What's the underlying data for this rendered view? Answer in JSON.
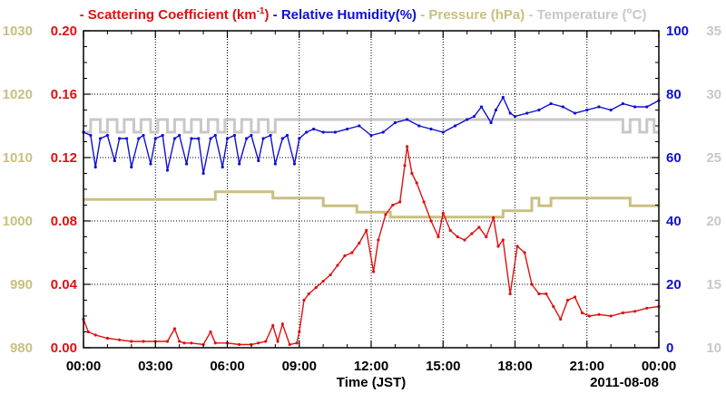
{
  "chart_data": {
    "type": "line",
    "title_parts": [
      {
        "text": "- Scattering Coefficient (km",
        "sup": "-1",
        "after": ")",
        "color": "#e01010"
      },
      {
        "text": " - Relative Humidity(%)",
        "color": "#1010d0"
      },
      {
        "text": " - Pressure (hPa)",
        "color": "#c8c080"
      },
      {
        "text": " - Temperature (",
        "sup2": "o",
        "after": "C)",
        "color": "#c8c8c8"
      }
    ],
    "xlabel": "Time (JST)",
    "date_label": "2011-08-08",
    "x_ticks": [
      "00:00",
      "03:00",
      "06:00",
      "09:00",
      "12:00",
      "15:00",
      "18:00",
      "21:00",
      "00:00"
    ],
    "xlim_hours": [
      0,
      24
    ],
    "axes": {
      "pressure": {
        "side": "left-outer",
        "ylim": [
          980,
          1030
        ],
        "ticks": [
          "980",
          "990",
          "1000",
          "1010",
          "1020",
          "1030"
        ],
        "color": "#c8c080"
      },
      "scattering": {
        "side": "left-inner",
        "ylim": [
          0,
          0.2
        ],
        "ticks": [
          "0.00",
          "0.04",
          "0.08",
          "0.12",
          "0.16",
          "0.20"
        ],
        "color": "#e01010"
      },
      "humidity": {
        "side": "right-inner",
        "ylim": [
          0,
          100
        ],
        "ticks": [
          "0",
          "20",
          "40",
          "60",
          "80",
          "100"
        ],
        "color": "#1010d0"
      },
      "temperature": {
        "side": "right-outer",
        "ylim": [
          10,
          35
        ],
        "ticks": [
          "10",
          "15",
          "20",
          "25",
          "30",
          "35"
        ],
        "color": "#c8c8c8"
      }
    },
    "grid": true,
    "series": [
      {
        "key": "scattering",
        "axis": "scattering",
        "color": "#e01010",
        "marker": true,
        "x": [
          0,
          0.2,
          0.5,
          1,
          1.5,
          2,
          2.5,
          3,
          3.5,
          3.8,
          4.0,
          4.2,
          4.5,
          5,
          5.3,
          5.5,
          6,
          6.5,
          7,
          7.3,
          7.6,
          7.9,
          8.1,
          8.3,
          8.6,
          8.9,
          9.0,
          9.2,
          9.4,
          9.7,
          10,
          10.3,
          10.6,
          10.9,
          11.2,
          11.5,
          11.8,
          12.1,
          12.3,
          12.6,
          12.9,
          13.2,
          13.4,
          13.5,
          13.7,
          13.9,
          14.2,
          14.5,
          14.8,
          15.0,
          15.3,
          15.6,
          15.9,
          16.2,
          16.5,
          16.8,
          17.1,
          17.3,
          17.5,
          17.8,
          18.1,
          18.4,
          18.7,
          19.0,
          19.3,
          19.6,
          19.9,
          20.2,
          20.5,
          20.8,
          21.1,
          21.5,
          22.0,
          22.5,
          23.0,
          23.5,
          24.0
        ],
        "y": [
          0.018,
          0.01,
          0.008,
          0.006,
          0.005,
          0.004,
          0.004,
          0.004,
          0.004,
          0.012,
          0.004,
          0.003,
          0.003,
          0.002,
          0.01,
          0.003,
          0.003,
          0.002,
          0.002,
          0.003,
          0.004,
          0.014,
          0.004,
          0.015,
          0.002,
          0.003,
          0.01,
          0.03,
          0.034,
          0.038,
          0.042,
          0.046,
          0.052,
          0.058,
          0.06,
          0.066,
          0.074,
          0.048,
          0.068,
          0.084,
          0.09,
          0.092,
          0.115,
          0.127,
          0.11,
          0.104,
          0.092,
          0.08,
          0.07,
          0.085,
          0.074,
          0.07,
          0.068,
          0.072,
          0.076,
          0.07,
          0.082,
          0.064,
          0.068,
          0.034,
          0.064,
          0.06,
          0.04,
          0.034,
          0.034,
          0.026,
          0.018,
          0.03,
          0.032,
          0.022,
          0.02,
          0.021,
          0.02,
          0.022,
          0.023,
          0.025,
          0.026
        ]
      },
      {
        "key": "humidity",
        "axis": "humidity",
        "color": "#1010d0",
        "marker": true,
        "x": [
          0,
          0.3,
          0.5,
          0.7,
          1,
          1.3,
          1.5,
          1.8,
          2,
          2.3,
          2.5,
          2.8,
          3,
          3.3,
          3.5,
          3.8,
          4.0,
          4.3,
          4.5,
          4.8,
          5.0,
          5.3,
          5.5,
          5.8,
          6.0,
          6.3,
          6.5,
          6.8,
          7.0,
          7.3,
          7.5,
          7.8,
          8.0,
          8.3,
          8.5,
          8.8,
          9.0,
          9.3,
          9.6,
          10,
          10.5,
          11,
          11.5,
          12,
          12.5,
          13,
          13.5,
          14,
          14.5,
          15,
          15.5,
          16,
          16.3,
          16.6,
          17.0,
          17.2,
          17.5,
          17.8,
          18,
          18.5,
          19,
          19.5,
          20,
          20.5,
          21,
          21.5,
          22,
          22.5,
          23,
          23.5,
          24
        ],
        "y": [
          68,
          67,
          57,
          66,
          67,
          59,
          66,
          66,
          57,
          66,
          67,
          58,
          66,
          67,
          56,
          66,
          67,
          58,
          66,
          66,
          55,
          66,
          67,
          57,
          66,
          67,
          58,
          66,
          67,
          59,
          66,
          67,
          58,
          66,
          67,
          58,
          66,
          68,
          69,
          68,
          68,
          69,
          70,
          67,
          68,
          71,
          72,
          70,
          69,
          68,
          70,
          72,
          73,
          76,
          71,
          75,
          79,
          74,
          73,
          74,
          75,
          77,
          76,
          74,
          75,
          76,
          75,
          77,
          76,
          76,
          78
        ]
      },
      {
        "key": "pressure",
        "axis": "pressure",
        "color": "#c8c080",
        "marker": false,
        "x": [
          0,
          5.5,
          5.5,
          7.9,
          7.9,
          10.0,
          10.0,
          11.4,
          11.4,
          12.8,
          12.8,
          17.5,
          17.5,
          18.7,
          18.7,
          19.0,
          19.0,
          19.5,
          19.5,
          22.8,
          22.8,
          24
        ],
        "y": [
          1003.4,
          1003.4,
          1004.6,
          1004.6,
          1003.6,
          1003.6,
          1002.4,
          1002.4,
          1001.4,
          1001.4,
          1000.6,
          1000.6,
          1001.6,
          1001.6,
          1003.6,
          1003.6,
          1002.4,
          1002.4,
          1003.6,
          1003.6,
          1002.4,
          1002.4
        ]
      },
      {
        "key": "temperature",
        "axis": "temperature",
        "color": "#c8c8c8",
        "marker": false,
        "x": [
          0,
          0.3,
          0.3,
          0.7,
          0.7,
          1.0,
          1.0,
          1.4,
          1.4,
          1.7,
          1.7,
          2.1,
          2.1,
          2.4,
          2.4,
          2.8,
          2.8,
          3.1,
          3.1,
          3.5,
          3.5,
          3.8,
          3.8,
          4.2,
          4.2,
          4.5,
          4.5,
          4.9,
          4.9,
          5.2,
          5.2,
          5.6,
          5.6,
          5.9,
          5.9,
          6.3,
          6.3,
          6.6,
          6.6,
          7.0,
          7.0,
          7.3,
          7.3,
          7.7,
          7.7,
          8.0,
          8.0,
          8.4,
          8.4,
          22.5,
          22.5,
          22.8,
          22.8,
          23.2,
          23.2,
          23.5,
          23.5,
          23.8,
          23.8,
          24
        ],
        "y": [
          27.0,
          27.0,
          28.0,
          28.0,
          27.0,
          27.0,
          28.0,
          28.0,
          27.0,
          27.0,
          28.0,
          28.0,
          27.0,
          27.0,
          28.0,
          28.0,
          27.0,
          27.0,
          28.0,
          28.0,
          27.0,
          27.0,
          28.0,
          28.0,
          27.0,
          27.0,
          28.0,
          28.0,
          27.0,
          27.0,
          28.0,
          28.0,
          27.0,
          27.0,
          28.0,
          28.0,
          27.0,
          27.0,
          28.0,
          28.0,
          27.0,
          27.0,
          28.0,
          28.0,
          27.0,
          27.0,
          28.0,
          28.0,
          28.0,
          28.0,
          27.0,
          27.0,
          28.0,
          28.0,
          27.0,
          27.0,
          28.0,
          28.0,
          27.0,
          27.0
        ]
      }
    ]
  }
}
